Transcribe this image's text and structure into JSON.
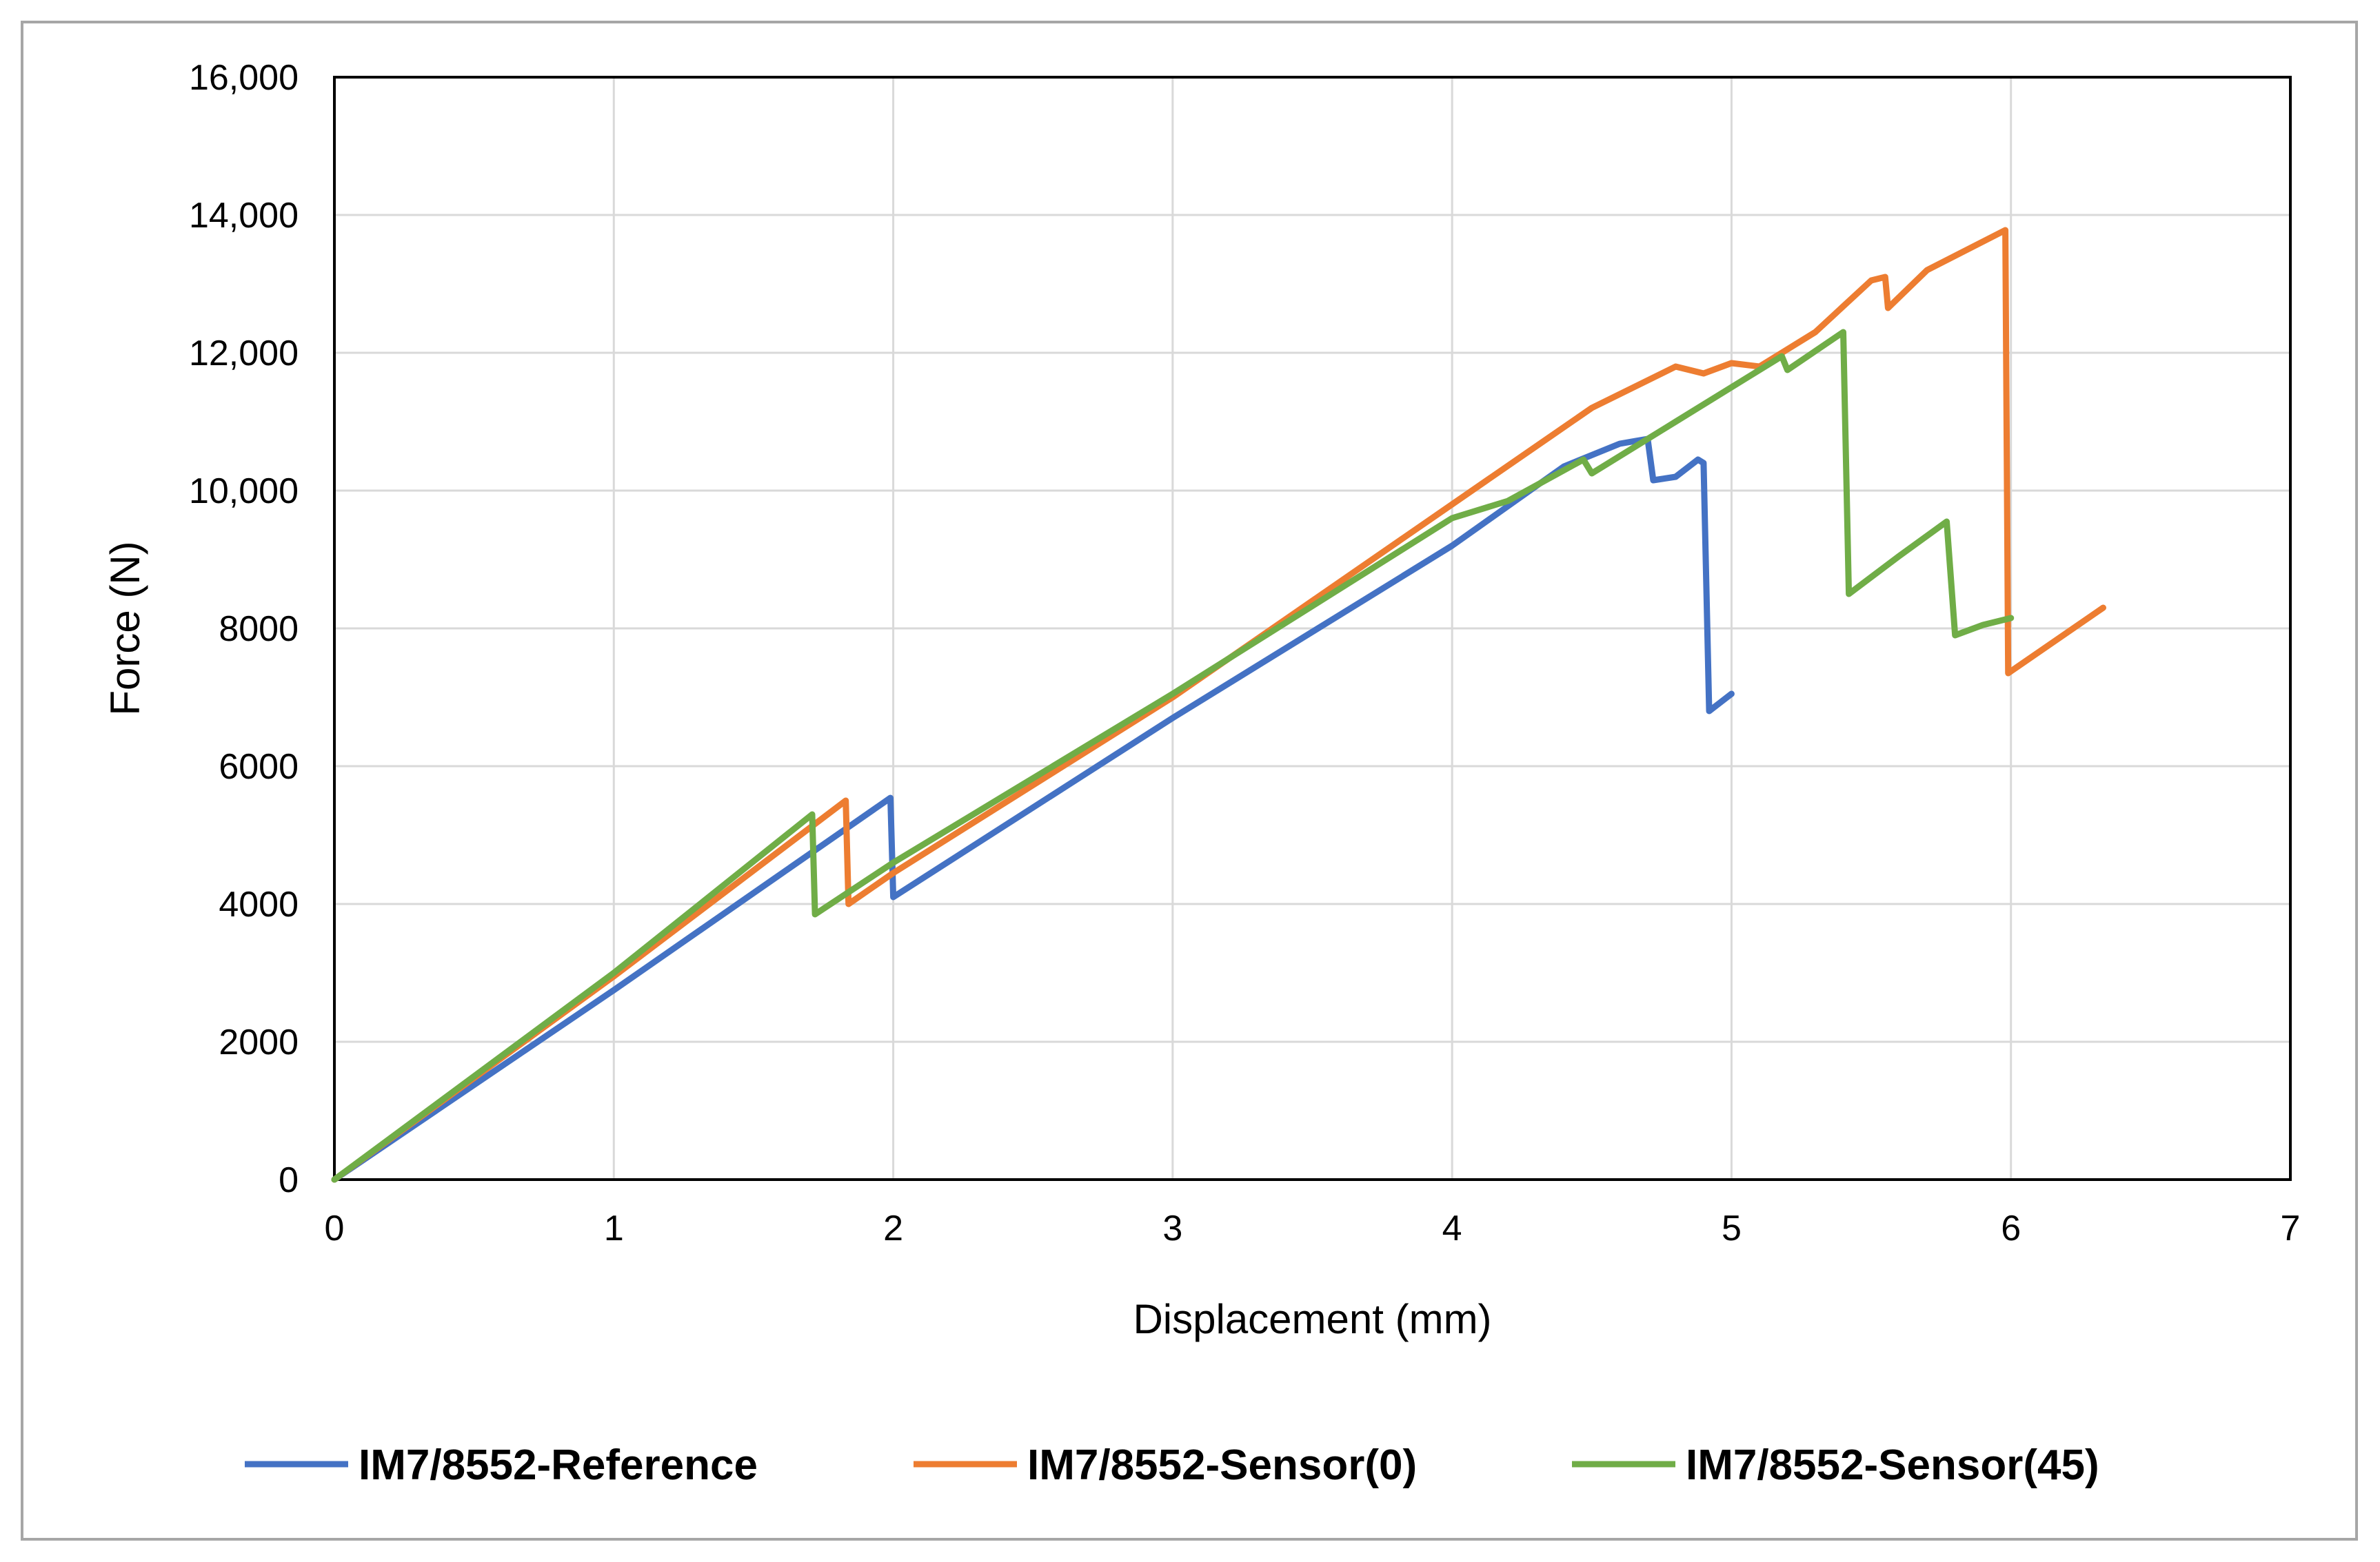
{
  "chart_data": {
    "type": "line",
    "title": "",
    "xlabel": "Displacement (mm)",
    "ylabel": "Force (N)",
    "xlim": [
      0,
      7
    ],
    "ylim": [
      0,
      16000
    ],
    "x_ticks": [
      "0",
      "1",
      "2",
      "3",
      "4",
      "5",
      "6",
      "7"
    ],
    "y_ticks": [
      "0",
      "2000",
      "4000",
      "6000",
      "8000",
      "10,000",
      "12,000",
      "14,000",
      "16,000"
    ],
    "grid": true,
    "legend_position": "bottom",
    "series": [
      {
        "name": "IM7/8552-Reference",
        "color": "#4472c4",
        "points": [
          [
            0,
            0
          ],
          [
            1,
            2750
          ],
          [
            1.99,
            5540
          ],
          [
            2.0,
            4100
          ],
          [
            3,
            6700
          ],
          [
            4,
            9200
          ],
          [
            4.4,
            10350
          ],
          [
            4.6,
            10680
          ],
          [
            4.7,
            10750
          ],
          [
            4.72,
            10150
          ],
          [
            4.8,
            10200
          ],
          [
            4.88,
            10450
          ],
          [
            4.9,
            10400
          ],
          [
            4.92,
            6800
          ],
          [
            5.0,
            7050
          ]
        ]
      },
      {
        "name": "IM7/8552-Sensor(0)",
        "color": "#ed7d31",
        "points": [
          [
            0,
            0
          ],
          [
            1,
            2950
          ],
          [
            1.83,
            5500
          ],
          [
            1.84,
            4000
          ],
          [
            2,
            4450
          ],
          [
            3,
            7000
          ],
          [
            4,
            9800
          ],
          [
            4.5,
            11200
          ],
          [
            4.8,
            11800
          ],
          [
            4.9,
            11700
          ],
          [
            5.0,
            11850
          ],
          [
            5.1,
            11800
          ],
          [
            5.3,
            12300
          ],
          [
            5.5,
            13050
          ],
          [
            5.55,
            13100
          ],
          [
            5.56,
            12650
          ],
          [
            5.7,
            13200
          ],
          [
            5.98,
            13780
          ],
          [
            5.99,
            7350
          ],
          [
            6.33,
            8300
          ]
        ]
      },
      {
        "name": "IM7/8552-Sensor(45)",
        "color": "#70ad47",
        "points": [
          [
            0,
            0
          ],
          [
            1,
            3000
          ],
          [
            1.71,
            5300
          ],
          [
            1.72,
            3850
          ],
          [
            2,
            4600
          ],
          [
            3,
            7050
          ],
          [
            4,
            9600
          ],
          [
            4.2,
            9850
          ],
          [
            4.47,
            10450
          ],
          [
            4.5,
            10250
          ],
          [
            4.8,
            11000
          ],
          [
            5.18,
            11950
          ],
          [
            5.2,
            11750
          ],
          [
            5.4,
            12300
          ],
          [
            5.42,
            8500
          ],
          [
            5.6,
            9050
          ],
          [
            5.77,
            9550
          ],
          [
            5.8,
            7900
          ],
          [
            5.9,
            8050
          ],
          [
            6.0,
            8150
          ]
        ]
      }
    ]
  }
}
